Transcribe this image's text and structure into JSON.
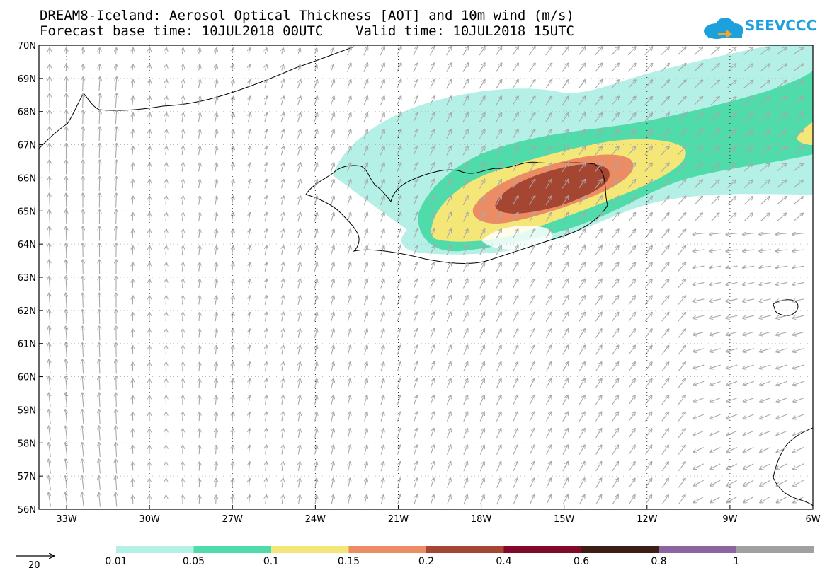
{
  "title": {
    "line1": "DREAM8-Iceland: Aerosol Optical Thickness [AOT] and 10m wind (m/s)",
    "line2": "Forecast base time: 10JUL2018 00UTC    Valid time: 10JUL2018 15UTC"
  },
  "logo": {
    "text": "SEEVCCC",
    "color": "#1ea0dc"
  },
  "map": {
    "lon_range": [
      -34,
      -6
    ],
    "lat_range": [
      56,
      70
    ],
    "lat_labels": [
      "70N",
      "69N",
      "68N",
      "67N",
      "66N",
      "65N",
      "64N",
      "63N",
      "62N",
      "61N",
      "60N",
      "59N",
      "58N",
      "57N",
      "56N"
    ],
    "lon_labels": [
      "33W",
      "30W",
      "27W",
      "24W",
      "21W",
      "18W",
      "15W",
      "12W",
      "9W",
      "6W"
    ]
  },
  "legend": {
    "reference_vector": "20",
    "colors": [
      "#b4f0e6",
      "#50dcaa",
      "#f5e678",
      "#eb8c64",
      "#a54632",
      "#820a28",
      "#3c1e14",
      "#8c64a0",
      "#a0a0a0"
    ],
    "labels": [
      "0.01",
      "0.05",
      "0.1",
      "0.15",
      "0.2",
      "0.4",
      "0.6",
      "0.8",
      "1"
    ]
  }
}
